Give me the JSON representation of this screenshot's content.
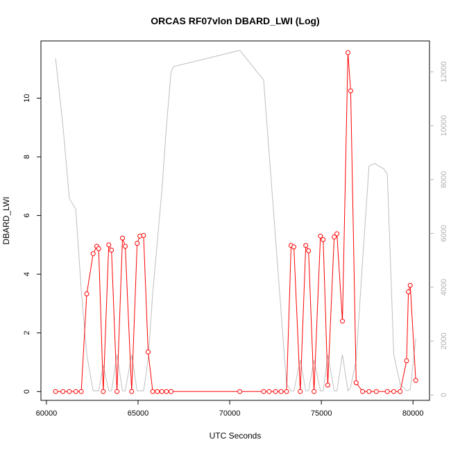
{
  "chart_data": {
    "type": "line",
    "title": "ORCAS RF07vlon DBARD_LWI (Log)",
    "xlabel": "UTC Seconds",
    "ylabel": "DBARD_LWI",
    "xlim": [
      59700,
      80900
    ],
    "ylim": [
      -0.3,
      11.95
    ],
    "y2lim": [
      -200,
      13150
    ],
    "x_ticks": [
      60000,
      65000,
      70000,
      75000,
      80000
    ],
    "y_ticks": [
      0,
      2,
      4,
      6,
      8,
      10
    ],
    "y2_ticks": [
      0,
      2000,
      4000,
      6000,
      8000,
      10000,
      12000
    ],
    "grid": false,
    "legend": "none",
    "series": [
      {
        "color": "#ff0000",
        "axis": "left",
        "markers": "open-circle",
        "points": [
          [
            60500,
            0
          ],
          [
            60900,
            0
          ],
          [
            61250,
            0
          ],
          [
            61600,
            0
          ],
          [
            61900,
            0
          ],
          [
            62200,
            3.33
          ],
          [
            62550,
            4.7
          ],
          [
            62750,
            4.95
          ],
          [
            62850,
            4.87
          ],
          [
            63100,
            0
          ],
          [
            63400,
            5.0
          ],
          [
            63550,
            4.82
          ],
          [
            63850,
            0
          ],
          [
            64150,
            5.23
          ],
          [
            64300,
            4.95
          ],
          [
            64650,
            0
          ],
          [
            64950,
            5.05
          ],
          [
            65100,
            5.3
          ],
          [
            65300,
            5.32
          ],
          [
            65550,
            1.35
          ],
          [
            65800,
            0
          ],
          [
            66050,
            0
          ],
          [
            66300,
            0
          ],
          [
            66550,
            0
          ],
          [
            66800,
            0
          ],
          [
            70550,
            0
          ],
          [
            71850,
            0
          ],
          [
            72150,
            0
          ],
          [
            72500,
            0
          ],
          [
            72800,
            0
          ],
          [
            73100,
            0
          ],
          [
            73350,
            4.98
          ],
          [
            73500,
            4.93
          ],
          [
            73850,
            0
          ],
          [
            74150,
            4.98
          ],
          [
            74300,
            4.8
          ],
          [
            74600,
            0
          ],
          [
            74950,
            5.3
          ],
          [
            75100,
            5.18
          ],
          [
            75350,
            0.22
          ],
          [
            75700,
            5.27
          ],
          [
            75850,
            5.38
          ],
          [
            76150,
            2.4
          ],
          [
            76450,
            11.55
          ],
          [
            76600,
            10.25
          ],
          [
            76900,
            0.3
          ],
          [
            77250,
            0
          ],
          [
            77600,
            0
          ],
          [
            78000,
            0
          ],
          [
            78600,
            0
          ],
          [
            78950,
            0
          ],
          [
            79300,
            0
          ],
          [
            79650,
            1.05
          ],
          [
            79750,
            3.4
          ],
          [
            79850,
            3.62
          ],
          [
            80150,
            0.38
          ]
        ]
      },
      {
        "color": "#bebebe",
        "axis": "right",
        "markers": "none",
        "points": [
          [
            60500,
            12500
          ],
          [
            60900,
            10000
          ],
          [
            61250,
            7300
          ],
          [
            61600,
            6900
          ],
          [
            61900,
            3900
          ],
          [
            62200,
            1500
          ],
          [
            62550,
            150
          ],
          [
            62850,
            150
          ],
          [
            63100,
            1100
          ],
          [
            63400,
            150
          ],
          [
            63550,
            150
          ],
          [
            63850,
            1500
          ],
          [
            64150,
            150
          ],
          [
            64300,
            150
          ],
          [
            64650,
            1500
          ],
          [
            64950,
            150
          ],
          [
            65300,
            150
          ],
          [
            65550,
            1300
          ],
          [
            65800,
            3800
          ],
          [
            66300,
            7600
          ],
          [
            66550,
            10000
          ],
          [
            66800,
            12000
          ],
          [
            66950,
            12200
          ],
          [
            70550,
            12800
          ],
          [
            71850,
            11700
          ],
          [
            73100,
            400
          ],
          [
            73350,
            150
          ],
          [
            73500,
            150
          ],
          [
            73850,
            1300
          ],
          [
            74150,
            150
          ],
          [
            74300,
            150
          ],
          [
            74600,
            1300
          ],
          [
            74950,
            150
          ],
          [
            75100,
            150
          ],
          [
            75350,
            1500
          ],
          [
            75700,
            150
          ],
          [
            75850,
            150
          ],
          [
            76150,
            1500
          ],
          [
            76450,
            150
          ],
          [
            76600,
            300
          ],
          [
            76900,
            1300
          ],
          [
            77250,
            5000
          ],
          [
            77600,
            8500
          ],
          [
            77900,
            8600
          ],
          [
            78400,
            8400
          ],
          [
            78600,
            8200
          ],
          [
            78950,
            1500
          ],
          [
            79300,
            400
          ],
          [
            79650,
            150
          ],
          [
            79850,
            200
          ],
          [
            80150,
            2100
          ]
        ]
      }
    ]
  }
}
